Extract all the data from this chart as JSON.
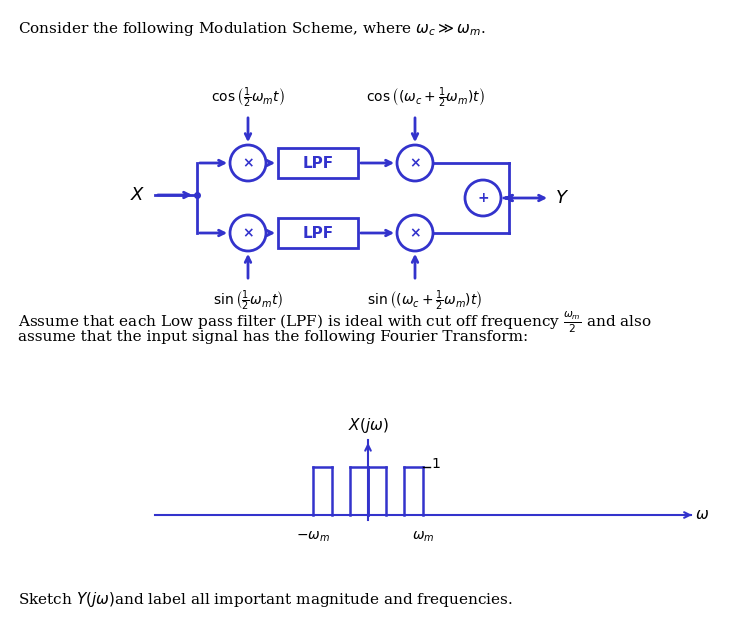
{
  "bg_color": "#ffffff",
  "blue": "#3333cc",
  "dark_blue": "#2222aa",
  "text_color": "#000000",
  "gray_text": "#555555",
  "title_text": "Consider the following Modulation Scheme, where $\\omega_c \\gg \\omega_m$.",
  "bottom_text": "Sketch $Y(j\\omega)$and label all important magnitude and frequencies.",
  "middle_text1": "Assume that each Low pass filter (LPF) is ideal with cut off frequency $\\frac{\\omega_m}{2}$ and also",
  "middle_text2": "assume that the input signal has the following Fourier Transform:",
  "fig_width": 7.37,
  "fig_height": 6.28,
  "dpi": 100
}
